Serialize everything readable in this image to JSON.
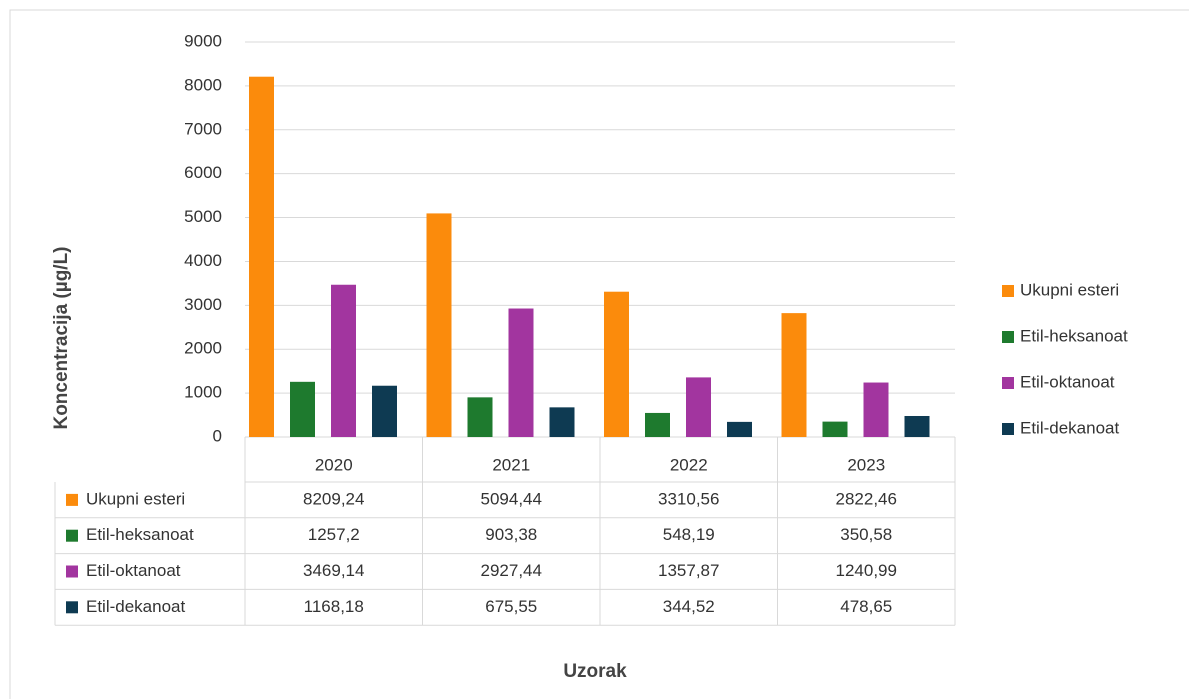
{
  "chart_data": {
    "type": "bar",
    "categories": [
      "2020",
      "2021",
      "2022",
      "2023"
    ],
    "series": [
      {
        "name": "Ukupni esteri",
        "color": "#fb8b0c",
        "values": [
          8209.24,
          5094.44,
          3310.56,
          2822.46
        ],
        "value_labels": [
          "8209,24",
          "5094,44",
          "3310,56",
          "2822,46"
        ]
      },
      {
        "name": "Etil-heksanoat",
        "color": "#1e7a2e",
        "values": [
          1257.2,
          903.38,
          548.19,
          350.58
        ],
        "value_labels": [
          "1257,2",
          "903,38",
          "548,19",
          "350,58"
        ]
      },
      {
        "name": "Etil-oktanoat",
        "color": "#a2359f",
        "values": [
          3469.14,
          2927.44,
          1357.87,
          1240.99
        ],
        "value_labels": [
          "3469,14",
          "2927,44",
          "1357,87",
          "1240,99"
        ]
      },
      {
        "name": "Etil-dekanoat",
        "color": "#0e3a52",
        "values": [
          1168.18,
          675.55,
          344.52,
          478.65
        ],
        "value_labels": [
          "1168,18",
          "675,55",
          "344,52",
          "478,65"
        ]
      }
    ],
    "xlabel": "Uzorak",
    "ylabel": "Koncentracija (µg/L)",
    "ylim": [
      0,
      9000
    ],
    "yticks": [
      0,
      1000,
      2000,
      3000,
      4000,
      5000,
      6000,
      7000,
      8000,
      9000
    ],
    "grid": true,
    "legend": "right",
    "data_table": true
  }
}
